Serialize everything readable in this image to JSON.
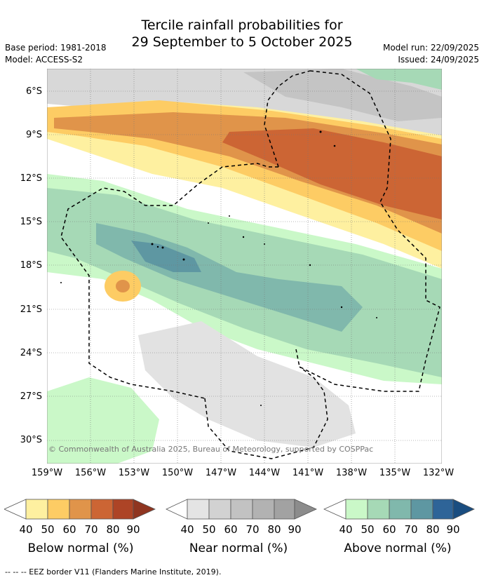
{
  "title_line1": "Tercile rainfall probabilities for",
  "title_line2": "29 September to 5 October 2025",
  "base_period": "Base period: 1981-2018",
  "model": "Model: ACCESS-S2",
  "model_run": "Model run: 22/09/2025",
  "issued": "Issued: 24/09/2025",
  "copyright": "© Commonwealth of Australia 2025, Bureau of Meteorology, supported by COSPPac",
  "footer": "--  --  -- EEZ border V11 (Flanders Marine Institute, 2019).",
  "lat_labels": [
    "6°S",
    "9°S",
    "12°S",
    "15°S",
    "18°S",
    "21°S",
    "24°S",
    "27°S",
    "30°S"
  ],
  "lon_labels": [
    "159°W",
    "156°W",
    "153°W",
    "150°W",
    "147°W",
    "144°W",
    "141°W",
    "138°W",
    "135°W",
    "132°W"
  ],
  "legends": [
    {
      "label": "Below normal (%)",
      "ticks": [
        "40",
        "50",
        "60",
        "70",
        "80",
        "90"
      ],
      "colors": [
        "#fef0a0",
        "#fdcc64",
        "#e0944a",
        "#cc6534",
        "#ad4426",
        "#8f3520"
      ]
    },
    {
      "label": "Near normal (%)",
      "ticks": [
        "40",
        "50",
        "60",
        "70",
        "80",
        "90"
      ],
      "colors": [
        "#e4e4e4",
        "#d2d2d2",
        "#c2c2c2",
        "#b2b2b2",
        "#a2a2a2",
        "#8c8c8c"
      ]
    },
    {
      "label": "Above normal (%)",
      "ticks": [
        "40",
        "50",
        "60",
        "70",
        "80",
        "90"
      ],
      "colors": [
        "#caf8c8",
        "#a6d9b6",
        "#80b8ac",
        "#5e97a2",
        "#2e6498",
        "#1a4d80"
      ]
    }
  ],
  "colors": {
    "below_light": "#fef0a0",
    "below_mid": "#fdcc64",
    "below_dark": "#e0944a",
    "below_darker": "#cc6534",
    "near_light": "#e4e4e4",
    "near_mid": "#d2d2d2",
    "above_light": "#caf8c8",
    "above_mid": "#a6d9b6",
    "above_dark": "#80b8ac",
    "above_darker": "#5e97a2"
  }
}
